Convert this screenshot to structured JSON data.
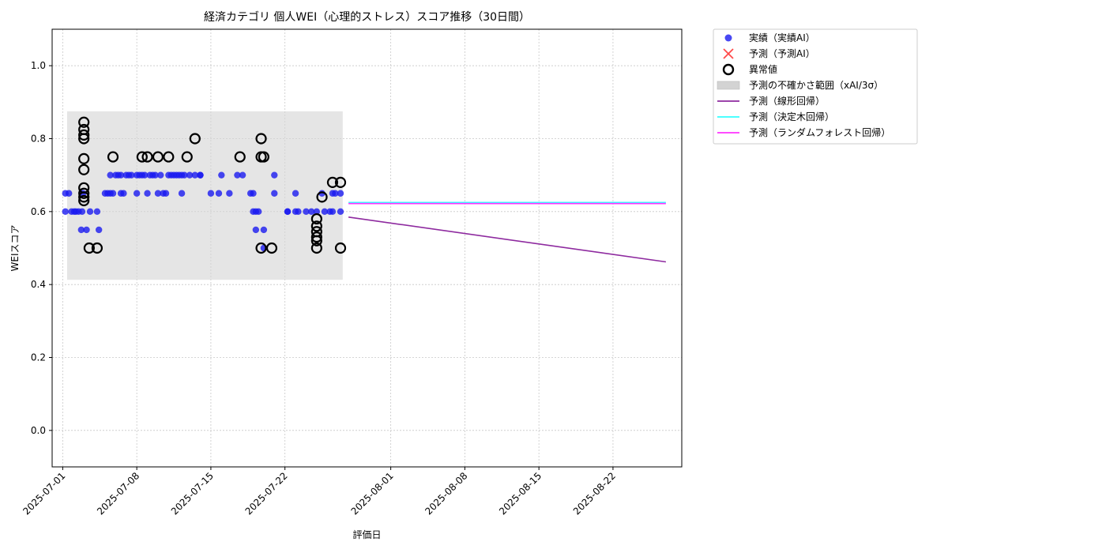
{
  "chart_data": {
    "type": "scatter",
    "title": "経済カテゴリ 個人WEI（心理的ストレス）スコア推移（30日間）",
    "xlabel": "評価日",
    "ylabel": "WEIスコア",
    "xlim": [
      "2025-06-30T00:00",
      "2025-08-28T12:00"
    ],
    "ylim": [
      -0.1,
      1.1
    ],
    "x_ticks": [
      "2025-07-01",
      "2025-07-08",
      "2025-07-15",
      "2025-07-22",
      "2025-08-01",
      "2025-08-08",
      "2025-08-15",
      "2025-08-22"
    ],
    "y_ticks": [
      "0.0",
      "0.2",
      "0.4",
      "0.6",
      "0.8",
      "1.0"
    ],
    "grid": true,
    "legend_position": "outside-top-right",
    "uncertainty_band": {
      "x": [
        "2025-07-01T10:00",
        "2025-07-27T11:00"
      ],
      "y": [
        0.413,
        0.875
      ],
      "color": "#d3d3d3"
    },
    "legend": [
      {
        "label": "実績（実績AI）",
        "marker": "dot",
        "color": "#1a1af0"
      },
      {
        "label": "予測（予測AI）",
        "marker": "x",
        "color": "#ff4a4a"
      },
      {
        "label": "異常値",
        "marker": "ring",
        "color": "#000000"
      },
      {
        "label": "予測の不確かさ範囲（xAI/3σ）",
        "marker": "patch",
        "color": "#d3d3d3"
      },
      {
        "label": "予測（線形回帰）",
        "marker": "line",
        "color": "#8e2a9f"
      },
      {
        "label": "予測（決定木回帰）",
        "marker": "line",
        "color": "#33ffff"
      },
      {
        "label": "予測（ランダムフォレスト回帰）",
        "marker": "line",
        "color": "#ff33ff"
      }
    ],
    "series": [
      {
        "name": "実績（実績AI）",
        "kind": "scatter",
        "color": "#1a1af0",
        "points": [
          [
            "2025-07-01T06:00",
            0.65
          ],
          [
            "2025-07-01T06:00",
            0.6
          ],
          [
            "2025-07-01T14:00",
            0.65
          ],
          [
            "2025-07-01T20:00",
            0.6
          ],
          [
            "2025-07-02T02:00",
            0.6
          ],
          [
            "2025-07-02T06:00",
            0.6
          ],
          [
            "2025-07-02T12:00",
            0.6
          ],
          [
            "2025-07-02T18:00",
            0.55
          ],
          [
            "2025-07-02T20:00",
            0.6
          ],
          [
            "2025-07-02T22:00",
            0.65
          ],
          [
            "2025-07-03T06:00",
            0.55
          ],
          [
            "2025-07-03T14:00",
            0.6
          ],
          [
            "2025-07-04T06:00",
            0.6
          ],
          [
            "2025-07-04T10:00",
            0.55
          ],
          [
            "2025-07-05T00:00",
            0.65
          ],
          [
            "2025-07-05T06:00",
            0.65
          ],
          [
            "2025-07-05T12:00",
            0.7
          ],
          [
            "2025-07-05T12:00",
            0.65
          ],
          [
            "2025-07-05T18:00",
            0.65
          ],
          [
            "2025-07-06T00:00",
            0.7
          ],
          [
            "2025-07-06T06:00",
            0.7
          ],
          [
            "2025-07-06T12:00",
            0.7
          ],
          [
            "2025-07-06T12:00",
            0.65
          ],
          [
            "2025-07-06T18:00",
            0.65
          ],
          [
            "2025-07-07T00:00",
            0.7
          ],
          [
            "2025-07-07T06:00",
            0.7
          ],
          [
            "2025-07-07T12:00",
            0.7
          ],
          [
            "2025-07-08T00:00",
            0.7
          ],
          [
            "2025-07-08T00:00",
            0.65
          ],
          [
            "2025-07-08T06:00",
            0.7
          ],
          [
            "2025-07-08T12:00",
            0.7
          ],
          [
            "2025-07-08T18:00",
            0.7
          ],
          [
            "2025-07-09T00:00",
            0.65
          ],
          [
            "2025-07-09T06:00",
            0.7
          ],
          [
            "2025-07-09T12:00",
            0.7
          ],
          [
            "2025-07-09T18:00",
            0.7
          ],
          [
            "2025-07-10T00:00",
            0.65
          ],
          [
            "2025-07-10T06:00",
            0.7
          ],
          [
            "2025-07-10T12:00",
            0.65
          ],
          [
            "2025-07-10T18:00",
            0.65
          ],
          [
            "2025-07-11T00:00",
            0.7
          ],
          [
            "2025-07-11T06:00",
            0.7
          ],
          [
            "2025-07-11T12:00",
            0.7
          ],
          [
            "2025-07-11T18:00",
            0.7
          ],
          [
            "2025-07-12T00:00",
            0.7
          ],
          [
            "2025-07-12T06:00",
            0.7
          ],
          [
            "2025-07-12T06:00",
            0.65
          ],
          [
            "2025-07-12T12:00",
            0.7
          ],
          [
            "2025-07-13T00:00",
            0.7
          ],
          [
            "2025-07-13T12:00",
            0.7
          ],
          [
            "2025-07-14T00:00",
            0.7
          ],
          [
            "2025-07-14T00:00",
            0.7
          ],
          [
            "2025-07-15T00:00",
            0.65
          ],
          [
            "2025-07-15T18:00",
            0.65
          ],
          [
            "2025-07-16T00:00",
            0.7
          ],
          [
            "2025-07-16T18:00",
            0.65
          ],
          [
            "2025-07-17T12:00",
            0.7
          ],
          [
            "2025-07-18T00:00",
            0.7
          ],
          [
            "2025-07-18T18:00",
            0.65
          ],
          [
            "2025-07-19T00:00",
            0.65
          ],
          [
            "2025-07-19T00:00",
            0.6
          ],
          [
            "2025-07-19T06:00",
            0.55
          ],
          [
            "2025-07-19T06:00",
            0.6
          ],
          [
            "2025-07-19T12:00",
            0.6
          ],
          [
            "2025-07-20T00:00",
            0.55
          ],
          [
            "2025-07-20T00:00",
            0.5
          ],
          [
            "2025-07-21T00:00",
            0.65
          ],
          [
            "2025-07-21T00:00",
            0.7
          ],
          [
            "2025-07-22T06:00",
            0.6
          ],
          [
            "2025-07-22T06:00",
            0.6
          ],
          [
            "2025-07-23T00:00",
            0.65
          ],
          [
            "2025-07-23T00:00",
            0.6
          ],
          [
            "2025-07-23T06:00",
            0.6
          ],
          [
            "2025-07-24T00:00",
            0.6
          ],
          [
            "2025-07-24T12:00",
            0.6
          ],
          [
            "2025-07-25T00:00",
            0.6
          ],
          [
            "2025-07-25T12:00",
            0.65
          ],
          [
            "2025-07-25T18:00",
            0.6
          ],
          [
            "2025-07-26T06:00",
            0.6
          ],
          [
            "2025-07-26T12:00",
            0.65
          ],
          [
            "2025-07-26T12:00",
            0.6
          ],
          [
            "2025-07-26T18:00",
            0.65
          ],
          [
            "2025-07-27T06:00",
            0.65
          ],
          [
            "2025-07-27T06:00",
            0.6
          ]
        ]
      },
      {
        "name": "異常値",
        "kind": "ring",
        "color": "#000000",
        "points": [
          [
            "2025-07-03T00:00",
            0.845
          ],
          [
            "2025-07-03T00:00",
            0.825
          ],
          [
            "2025-07-03T00:00",
            0.81
          ],
          [
            "2025-07-03T00:00",
            0.8
          ],
          [
            "2025-07-03T00:00",
            0.745
          ],
          [
            "2025-07-03T00:00",
            0.715
          ],
          [
            "2025-07-03T00:00",
            0.665
          ],
          [
            "2025-07-03T00:00",
            0.65
          ],
          [
            "2025-07-03T00:00",
            0.64
          ],
          [
            "2025-07-03T00:00",
            0.63
          ],
          [
            "2025-07-03T12:00",
            0.5
          ],
          [
            "2025-07-04T06:00",
            0.5
          ],
          [
            "2025-07-05T18:00",
            0.75
          ],
          [
            "2025-07-08T12:00",
            0.75
          ],
          [
            "2025-07-09T00:00",
            0.75
          ],
          [
            "2025-07-10T00:00",
            0.75
          ],
          [
            "2025-07-11T00:00",
            0.75
          ],
          [
            "2025-07-12T18:00",
            0.75
          ],
          [
            "2025-07-13T12:00",
            0.8
          ],
          [
            "2025-07-17T18:00",
            0.75
          ],
          [
            "2025-07-19T18:00",
            0.8
          ],
          [
            "2025-07-19T18:00",
            0.75
          ],
          [
            "2025-07-20T00:00",
            0.75
          ],
          [
            "2025-07-19T18:00",
            0.5
          ],
          [
            "2025-07-20T18:00",
            0.5
          ],
          [
            "2025-07-25T00:00",
            0.58
          ],
          [
            "2025-07-25T00:00",
            0.56
          ],
          [
            "2025-07-25T00:00",
            0.545
          ],
          [
            "2025-07-25T00:00",
            0.53
          ],
          [
            "2025-07-25T00:00",
            0.52
          ],
          [
            "2025-07-25T00:00",
            0.5
          ],
          [
            "2025-07-25T12:00",
            0.64
          ],
          [
            "2025-07-26T12:00",
            0.68
          ],
          [
            "2025-07-27T06:00",
            0.68
          ],
          [
            "2025-07-27T06:00",
            0.5
          ]
        ]
      },
      {
        "name": "予測（線形回帰）",
        "kind": "line",
        "color": "#8e2a9f",
        "points": [
          [
            "2025-07-28T00:00",
            0.585
          ],
          [
            "2025-08-27T00:00",
            0.462
          ]
        ]
      },
      {
        "name": "予測（決定木回帰）",
        "kind": "line",
        "color": "#33ffff",
        "points": [
          [
            "2025-07-28T00:00",
            0.625
          ],
          [
            "2025-08-27T00:00",
            0.625
          ]
        ]
      },
      {
        "name": "予測（ランダムフォレスト回帰）",
        "kind": "line",
        "color": "#ff33ff",
        "points": [
          [
            "2025-07-28T00:00",
            0.622
          ],
          [
            "2025-08-27T00:00",
            0.622
          ]
        ]
      }
    ]
  }
}
